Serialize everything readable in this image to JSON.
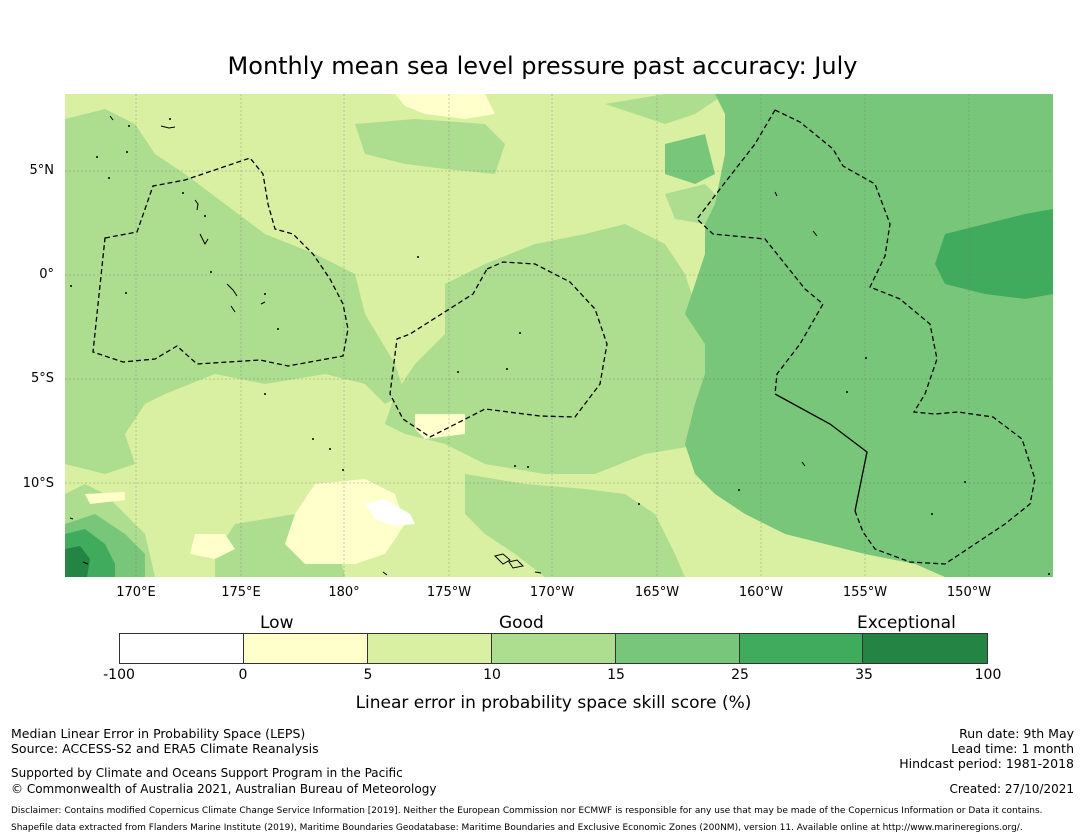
{
  "title": "Monthly mean sea level pressure past accuracy: July",
  "map": {
    "lat_labels": [
      "5°N",
      "0°",
      "5°S",
      "10°S"
    ],
    "lon_labels": [
      "170°E",
      "175°E",
      "180°",
      "175°W",
      "170°W",
      "165°W",
      "160°W",
      "155°W",
      "150°W"
    ],
    "colors": {
      "lowest": "#ffffff",
      "low": "#ffffcc",
      "fair": "#d9f0a3",
      "good": "#addd8e",
      "very_good": "#78c679",
      "high": "#41ab5d",
      "exceptional": "#238443"
    }
  },
  "legend": {
    "categories": [
      "Low",
      "Good",
      "Exceptional"
    ],
    "ticks": [
      "-100",
      "0",
      "5",
      "10",
      "15",
      "25",
      "35",
      "100"
    ],
    "axis_label": "Linear error in probability space skill score (%)"
  },
  "footer": {
    "method": "Median Linear Error in Probability Space (LEPS)",
    "source": "Source: ACCESS-S2 and ERA5 Climate Reanalysis",
    "support": "Supported by Climate and Oceans Support Program in the Pacific",
    "copyright": "© Commonwealth of Australia 2021, Australian Bureau of Meteorology",
    "run_date": "Run date: 9th May",
    "lead_time": "Lead time: 1 month",
    "hindcast": "Hindcast period: 1981-2018",
    "created": "Created: 27/10/2021",
    "disclaimer": "Disclaimer: Contains modified Copernicus Climate Change Service Information [2019]. Neither the European Commission nor ECMWF is responsible for any use that may be made of the Copernicus Information or Data it contains.",
    "shapefile": "Shapefile data extracted from Flanders Marine Institute (2019), Maritime Boundaries Geodatabase: Maritime Boundaries and Exclusive Economic Zones (200NM), version 11. Available online at http://www.marineregions.org/."
  }
}
